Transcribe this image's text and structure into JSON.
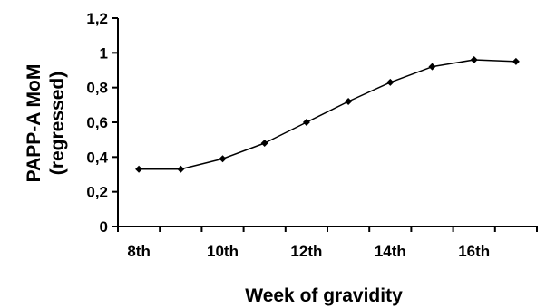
{
  "chart_data": {
    "type": "line",
    "title": "",
    "xlabel": "Week of gravidity",
    "ylabel_lines": [
      "PAPP-A MoM",
      "(regressed)"
    ],
    "x": [
      8.5,
      9.5,
      10.5,
      11.5,
      12.5,
      13.5,
      14.5,
      15.5,
      16.5,
      17.5
    ],
    "xlim": [
      8,
      18
    ],
    "x_ticks": [
      8,
      9,
      10,
      11,
      12,
      13,
      14,
      15,
      16,
      17,
      18
    ],
    "x_tick_labels": [
      {
        "x": 8.5,
        "label": "8th"
      },
      {
        "x": 10.5,
        "label": "10th"
      },
      {
        "x": 12.5,
        "label": "12th"
      },
      {
        "x": 14.5,
        "label": "14th"
      },
      {
        "x": 16.5,
        "label": "16th"
      }
    ],
    "y_ticks": [
      {
        "value": 0,
        "label": "0"
      },
      {
        "value": 0.2,
        "label": "0,2"
      },
      {
        "value": 0.4,
        "label": "0,4"
      },
      {
        "value": 0.6,
        "label": "0,6"
      },
      {
        "value": 0.8,
        "label": "0,8"
      },
      {
        "value": 1,
        "label": "1"
      },
      {
        "value": 1.2,
        "label": "1,2"
      }
    ],
    "ylim": [
      0,
      1.2
    ],
    "series": [
      {
        "values": [
          0.33,
          0.33,
          0.39,
          0.48,
          0.6,
          0.72,
          0.83,
          0.92,
          0.96,
          0.95
        ]
      }
    ],
    "grid": false,
    "legend": "none",
    "marker": "diamond",
    "colors": {
      "line": "#000000",
      "marker": "#000000",
      "axis": "#000000"
    }
  }
}
